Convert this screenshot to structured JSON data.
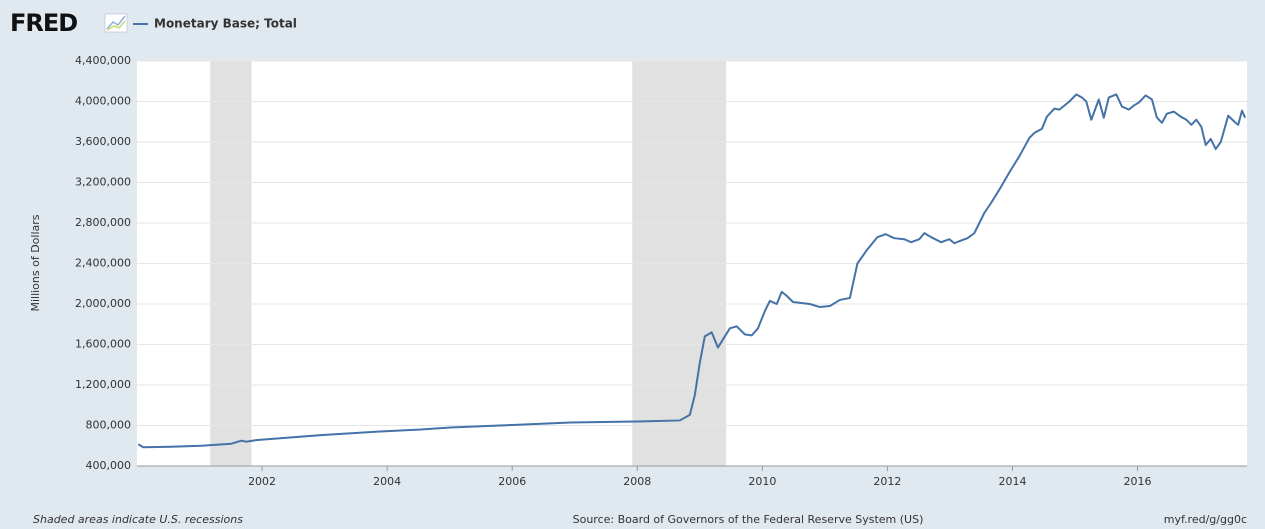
{
  "chart_data": {
    "type": "line",
    "brand": "FRED",
    "y_label": "Millions of Dollars",
    "note": "Shaded areas indicate U.S. recessions",
    "source": "Source: Board of Governors of the Federal Reserve System (US)",
    "link": "myf.red/g/gg0c",
    "xlim": [
      2000,
      2017.75
    ],
    "xticks": [
      2002,
      2004,
      2006,
      2008,
      2010,
      2012,
      2014,
      2016
    ],
    "ylim": [
      400000,
      4400000
    ],
    "yticks": [
      {
        "value": 400000,
        "label": "400,000"
      },
      {
        "value": 800000,
        "label": "800,000"
      },
      {
        "value": 1200000,
        "label": "1,200,000"
      },
      {
        "value": 1600000,
        "label": "1,600,000"
      },
      {
        "value": 2000000,
        "label": "2,000,000"
      },
      {
        "value": 2400000,
        "label": "2,400,000"
      },
      {
        "value": 2800000,
        "label": "2,800,000"
      },
      {
        "value": 3200000,
        "label": "3,200,000"
      },
      {
        "value": 3600000,
        "label": "3,600,000"
      },
      {
        "value": 4000000,
        "label": "4,000,000"
      },
      {
        "value": 4400000,
        "label": "4,400,000"
      }
    ],
    "grid": true,
    "recessions": [
      [
        2001.17,
        2001.83
      ],
      [
        2007.92,
        2009.42
      ]
    ],
    "recession_color": "#e1e1e1",
    "x": [
      2000.02,
      2000.1,
      2000.55,
      2001.03,
      2001.51,
      2001.67,
      2001.75,
      2001.9,
      2002.94,
      2004.01,
      2004.54,
      2005.01,
      2006.0,
      2006.93,
      2008.0,
      2008.68,
      2008.84,
      2008.92,
      2009.0,
      2009.08,
      2009.19,
      2009.29,
      2009.48,
      2009.59,
      2009.72,
      2009.83,
      2009.93,
      2010.04,
      2010.12,
      2010.23,
      2010.31,
      2010.39,
      2010.49,
      2010.76,
      2010.92,
      2011.08,
      2011.24,
      2011.4,
      2011.52,
      2011.68,
      2011.84,
      2011.97,
      2012.11,
      2012.27,
      2012.38,
      2012.51,
      2012.59,
      2012.7,
      2012.86,
      2012.99,
      2013.07,
      2013.15,
      2013.28,
      2013.39,
      2013.55,
      2013.66,
      2013.79,
      2013.95,
      2014.11,
      2014.27,
      2014.35,
      2014.47,
      2014.55,
      2014.67,
      2014.75,
      2014.91,
      2015.02,
      2015.11,
      2015.18,
      2015.26,
      2015.38,
      2015.46,
      2015.54,
      2015.66,
      2015.75,
      2015.86,
      2015.94,
      2016.02,
      2016.13,
      2016.23,
      2016.31,
      2016.39,
      2016.47,
      2016.58,
      2016.69,
      2016.78,
      2016.86,
      2016.94,
      2017.02,
      2017.09,
      2017.17,
      2017.25,
      2017.33,
      2017.45,
      2017.55,
      2017.61,
      2017.67,
      2017.72
    ],
    "series": [
      {
        "name": "Monetary Base; Total",
        "color": "#4572a7",
        "values": [
          615000,
          585000,
          590000,
          600000,
          620000,
          650000,
          640000,
          655000,
          705000,
          745000,
          760000,
          780000,
          805000,
          830000,
          840000,
          850000,
          905000,
          1100000,
          1420000,
          1680000,
          1720000,
          1570000,
          1760000,
          1780000,
          1700000,
          1690000,
          1760000,
          1930000,
          2030000,
          2000000,
          2120000,
          2080000,
          2020000,
          2000000,
          1970000,
          1980000,
          2040000,
          2060000,
          2400000,
          2540000,
          2660000,
          2690000,
          2650000,
          2640000,
          2610000,
          2640000,
          2700000,
          2660000,
          2610000,
          2640000,
          2600000,
          2620000,
          2650000,
          2700000,
          2900000,
          3000000,
          3130000,
          3300000,
          3460000,
          3640000,
          3690000,
          3730000,
          3850000,
          3930000,
          3920000,
          4000000,
          4070000,
          4040000,
          4000000,
          3820000,
          4020000,
          3840000,
          4040000,
          4070000,
          3950000,
          3920000,
          3960000,
          3990000,
          4060000,
          4020000,
          3840000,
          3790000,
          3880000,
          3900000,
          3850000,
          3820000,
          3770000,
          3820000,
          3750000,
          3570000,
          3630000,
          3530000,
          3600000,
          3860000,
          3800000,
          3770000,
          3910000,
          3840000
        ]
      }
    ]
  }
}
